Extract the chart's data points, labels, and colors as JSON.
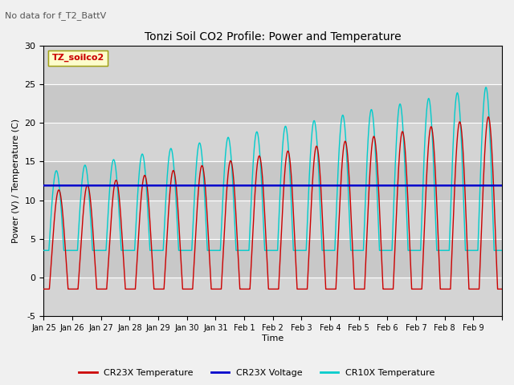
{
  "title": "Tonzi Soil CO2 Profile: Power and Temperature",
  "subtitle": "No data for f_T2_BattV",
  "ylabel": "Power (V) / Temperature (C)",
  "xlabel": "Time",
  "ylim": [
    -5,
    30
  ],
  "yticks": [
    -5,
    0,
    5,
    10,
    15,
    20,
    25,
    30
  ],
  "xtick_labels": [
    "Jan 25",
    "Jan 26",
    "Jan 27",
    "Jan 28",
    "Jan 29",
    "Jan 30",
    "Jan 31",
    "Feb 1",
    "Feb 2",
    "Feb 3",
    "Feb 4",
    "Feb 5",
    "Feb 6",
    "Feb 7",
    "Feb 8",
    "Feb 9"
  ],
  "legend_label_box": "TZ_soilco2",
  "legend_items": [
    {
      "label": "CR23X Temperature",
      "color": "#cc0000"
    },
    {
      "label": "CR23X Voltage",
      "color": "#0000cc"
    },
    {
      "label": "CR10X Temperature",
      "color": "#00cccc"
    }
  ],
  "voltage_value": 11.9,
  "cr23x_color": "#cc0000",
  "cr10x_color": "#00cccc",
  "voltage_color": "#0000cc",
  "bg_color": "#f0f0f0",
  "plot_bg_color": "#e0e0e0",
  "grid_color": "#ffffff",
  "total_days": 16
}
